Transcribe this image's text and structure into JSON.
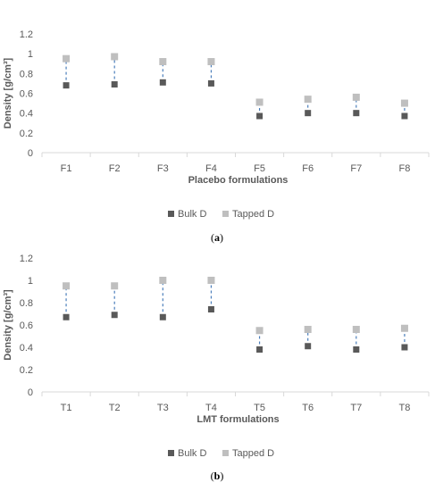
{
  "chart_data": [
    {
      "type": "scatter",
      "caption_label": "a",
      "xlabel": "Placebo formulations",
      "ylabel": "Density [g/cm³]",
      "ylim": [
        0,
        1.2
      ],
      "yticks": [
        "0",
        "0.2",
        "0.4",
        "0.6",
        "0.8",
        "1",
        "1.2"
      ],
      "grid": false,
      "legend_position": "bottom",
      "categories": [
        "F1",
        "F2",
        "F3",
        "F4",
        "F5",
        "F6",
        "F7",
        "F8"
      ],
      "series": [
        {
          "name": "Bulk D",
          "color": "#595959",
          "values": [
            0.68,
            0.69,
            0.71,
            0.7,
            0.37,
            0.4,
            0.4,
            0.37
          ]
        },
        {
          "name": "Tapped D",
          "color": "#bfbfbf",
          "values": [
            0.95,
            0.97,
            0.92,
            0.92,
            0.51,
            0.54,
            0.56,
            0.5
          ]
        }
      ]
    },
    {
      "type": "scatter",
      "caption_label": "b",
      "xlabel": "LMT formulations",
      "ylabel": "Density [g/cm³]",
      "ylim": [
        0,
        1.2
      ],
      "yticks": [
        "0",
        "0.2",
        "0.4",
        "0.6",
        "0.8",
        "1",
        "1.2"
      ],
      "grid": false,
      "legend_position": "bottom",
      "categories": [
        "T1",
        "T2",
        "T3",
        "T4",
        "T5",
        "T6",
        "T7",
        "T8"
      ],
      "series": [
        {
          "name": "Bulk D",
          "color": "#595959",
          "values": [
            0.67,
            0.69,
            0.67,
            0.74,
            0.38,
            0.41,
            0.38,
            0.4
          ]
        },
        {
          "name": "Tapped D",
          "color": "#bfbfbf",
          "values": [
            0.95,
            0.95,
            1.0,
            1.0,
            0.55,
            0.56,
            0.56,
            0.57
          ]
        }
      ]
    }
  ],
  "colors": {
    "connector": "#4a7ebb",
    "axis_text": "#595959",
    "axis_line": "#d9d9d9"
  }
}
